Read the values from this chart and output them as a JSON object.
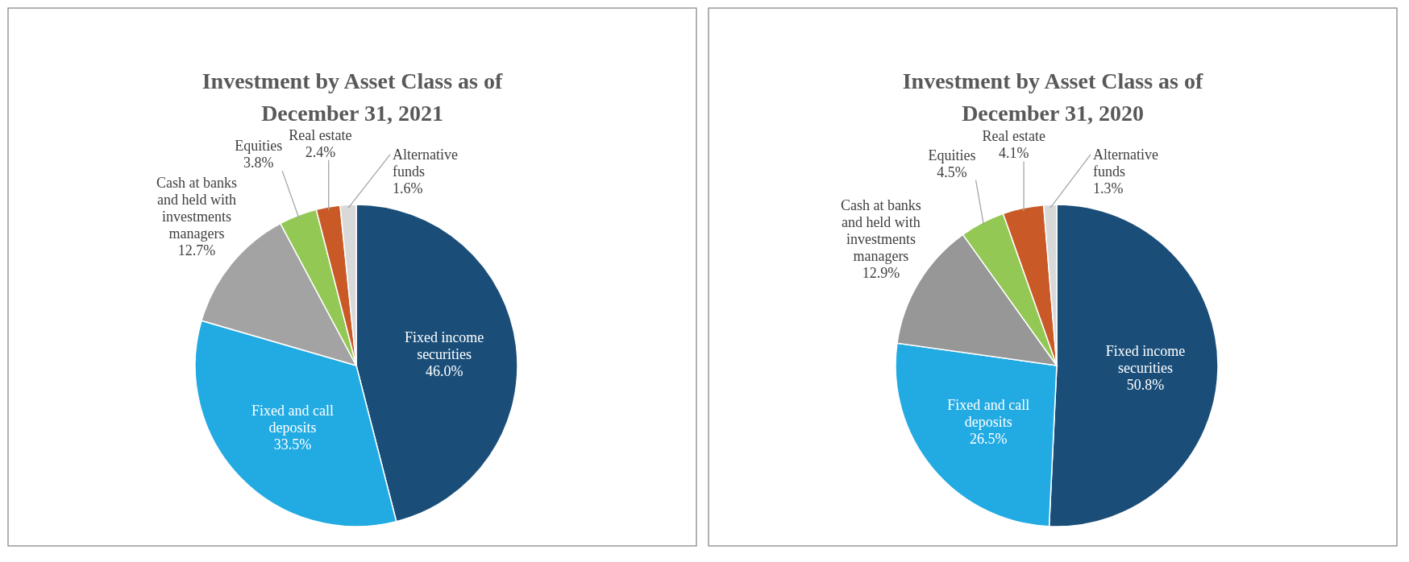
{
  "chart_data": [
    {
      "type": "pie",
      "title": "Investment by Asset Class as of December 31, 2021",
      "categories": [
        "Fixed income securities",
        "Fixed and call deposits",
        "Cash at banks and held with investments managers",
        "Equities",
        "Real estate",
        "Alternative funds"
      ],
      "values": [
        46.0,
        33.5,
        12.7,
        3.8,
        2.4,
        1.6
      ],
      "value_labels": [
        "46.0%",
        "33.5%",
        "12.7%",
        "3.8%",
        "2.4%",
        "1.6%"
      ],
      "colors": [
        "#1a4e79",
        "#22abe2",
        "#a3a3a3",
        "#92c853",
        "#c95a27",
        "#d9d9d9"
      ]
    },
    {
      "type": "pie",
      "title": "Investment by Asset Class as of December 31, 2020",
      "categories": [
        "Fixed income securities",
        "Fixed and call deposits",
        "Cash at banks and held with investments managers",
        "Equities",
        "Real estate",
        "Alternative funds"
      ],
      "values": [
        50.8,
        26.5,
        12.9,
        4.5,
        4.1,
        1.3
      ],
      "value_labels": [
        "50.8%",
        "26.5%",
        "12.9%",
        "4.5%",
        "4.1%",
        "1.3%"
      ],
      "colors": [
        "#1a4e79",
        "#22abe2",
        "#979797",
        "#92c853",
        "#c95a27",
        "#d9d9d9"
      ]
    }
  ]
}
